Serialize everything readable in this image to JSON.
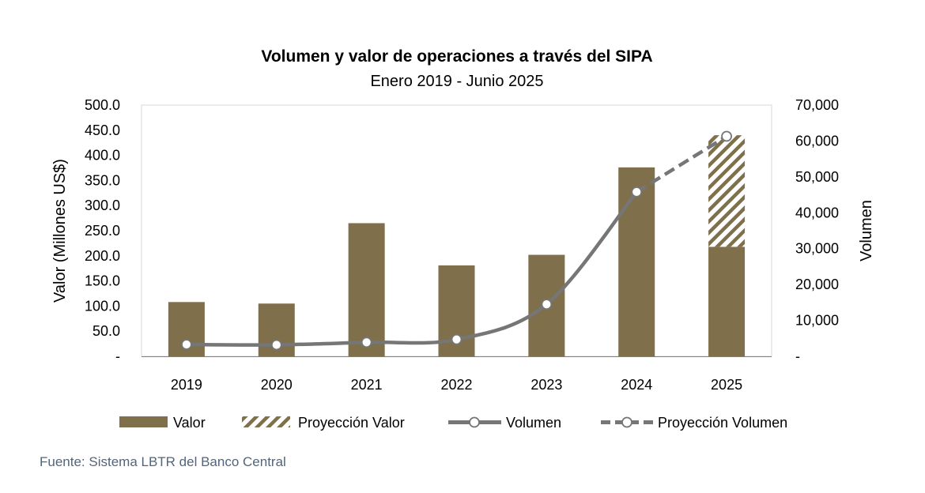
{
  "chart_data": {
    "type": "bar",
    "title": "Volumen y valor de operaciones a través del SIPA",
    "subtitle": "Enero 2019 - Junio 2025",
    "categories": [
      "2019",
      "2020",
      "2021",
      "2022",
      "2023",
      "2024",
      "2025"
    ],
    "ylabel": "Valor (Millones US$)",
    "y2label": "Volumen",
    "ylim": [
      0,
      500
    ],
    "y2lim": [
      0,
      70000
    ],
    "yticks": [
      "-",
      "50.0",
      "100.0",
      "150.0",
      "200.0",
      "250.0",
      "300.0",
      "350.0",
      "400.0",
      "450.0",
      "500.0"
    ],
    "y2ticks": [
      "-",
      "10,000",
      "20,000",
      "30,000",
      "40,000",
      "50,000",
      "60,000",
      "70,000"
    ],
    "grid": false,
    "legend_position": "bottom",
    "series": [
      {
        "name": "Valor",
        "type": "bar",
        "axis": "left",
        "color": "#7f6f4b",
        "values": [
          108,
          105,
          265,
          181,
          202,
          376,
          218
        ]
      },
      {
        "name": "Proyección Valor",
        "type": "bar-stacked-hatched",
        "axis": "left",
        "color": "#7f6f4b",
        "values": [
          null,
          null,
          null,
          null,
          null,
          null,
          222
        ]
      },
      {
        "name": "Volumen",
        "type": "line",
        "axis": "right",
        "color": "#767676",
        "values": [
          3300,
          3200,
          3900,
          4700,
          14500,
          45800,
          null
        ]
      },
      {
        "name": "Proyección Volumen",
        "type": "line-dashed",
        "axis": "right",
        "color": "#767676",
        "values": [
          null,
          null,
          null,
          null,
          null,
          45800,
          61300
        ]
      }
    ]
  },
  "source": "Fuente: Sistema LBTR del Banco Central"
}
